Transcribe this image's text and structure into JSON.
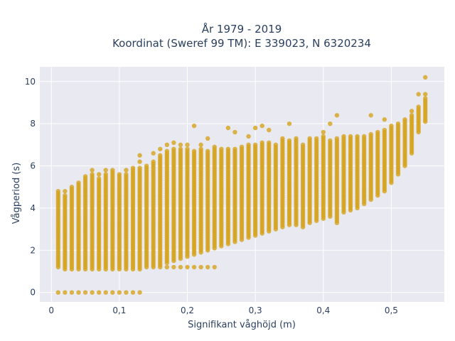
{
  "chart_data": {
    "type": "scatter",
    "title_line1": "År 1979 - 2019",
    "title_line2": "Koordinat (Sweref 99 TM): E 339023, N 6320234",
    "xlabel": "Signifikant våghöjd (m)",
    "ylabel": "Vågperiod (s)",
    "xlim": [
      -0.017,
      0.578
    ],
    "ylim": [
      -0.45,
      10.7
    ],
    "xticks": [
      0,
      0.1,
      0.2,
      0.3,
      0.4,
      0.5
    ],
    "xtick_labels": [
      "0",
      "0,1",
      "0,2",
      "0,3",
      "0,4",
      "0,5"
    ],
    "yticks": [
      0,
      2,
      4,
      6,
      8,
      10
    ],
    "ytick_labels": [
      "0",
      "2",
      "4",
      "6",
      "8",
      "10"
    ],
    "grid": true,
    "marker_color": "#d4a21c",
    "plot_bg": "#e9e9f1",
    "step": 0.01,
    "columns": [
      {
        "x": 0.01,
        "ymin": 1.2,
        "ymax": 4.7,
        "extra": [
          4.8
        ]
      },
      {
        "x": 0.02,
        "ymin": 1.1,
        "ymax": 4.6,
        "extra": [
          4.8
        ]
      },
      {
        "x": 0.03,
        "ymin": 1.1,
        "ymax": 5.0,
        "extra": []
      },
      {
        "x": 0.04,
        "ymin": 1.1,
        "ymax": 5.2,
        "extra": []
      },
      {
        "x": 0.05,
        "ymin": 1.1,
        "ymax": 5.4,
        "extra": [
          5.5
        ]
      },
      {
        "x": 0.06,
        "ymin": 1.1,
        "ymax": 5.6,
        "extra": [
          5.8
        ]
      },
      {
        "x": 0.07,
        "ymin": 1.1,
        "ymax": 5.4,
        "extra": [
          5.6
        ]
      },
      {
        "x": 0.08,
        "ymin": 1.1,
        "ymax": 5.6,
        "extra": [
          5.8
        ]
      },
      {
        "x": 0.09,
        "ymin": 1.1,
        "ymax": 5.8,
        "extra": []
      },
      {
        "x": 0.1,
        "ymin": 1.1,
        "ymax": 5.6,
        "extra": []
      },
      {
        "x": 0.11,
        "ymin": 1.1,
        "ymax": 5.6,
        "extra": [
          5.8
        ]
      },
      {
        "x": 0.12,
        "ymin": 1.1,
        "ymax": 5.8,
        "extra": [
          5.9
        ]
      },
      {
        "x": 0.13,
        "ymin": 1.1,
        "ymax": 5.9,
        "extra": [
          6.2,
          6.5
        ]
      },
      {
        "x": 0.14,
        "ymin": 1.3,
        "ymax": 6.0,
        "extra": []
      },
      {
        "x": 0.15,
        "ymin": 1.3,
        "ymax": 6.1,
        "extra": [
          6.2,
          6.6
        ]
      },
      {
        "x": 0.16,
        "ymin": 1.3,
        "ymax": 6.5,
        "extra": [
          6.8
        ]
      },
      {
        "x": 0.17,
        "ymin": 1.4,
        "ymax": 6.7,
        "extra": [
          7.0
        ]
      },
      {
        "x": 0.18,
        "ymin": 1.5,
        "ymax": 6.8,
        "extra": [
          7.1
        ]
      },
      {
        "x": 0.19,
        "ymin": 1.6,
        "ymax": 6.8,
        "extra": [
          7.0
        ]
      },
      {
        "x": 0.2,
        "ymin": 1.7,
        "ymax": 6.8,
        "extra": [
          7.0
        ]
      },
      {
        "x": 0.21,
        "ymin": 1.8,
        "ymax": 6.7,
        "extra": [
          7.9
        ]
      },
      {
        "x": 0.22,
        "ymin": 1.9,
        "ymax": 6.8,
        "extra": [
          7.0
        ]
      },
      {
        "x": 0.23,
        "ymin": 2.0,
        "ymax": 6.7,
        "extra": [
          7.3
        ]
      },
      {
        "x": 0.24,
        "ymin": 2.1,
        "ymax": 6.8,
        "extra": [
          6.9
        ]
      },
      {
        "x": 0.25,
        "ymin": 2.2,
        "ymax": 6.8,
        "extra": []
      },
      {
        "x": 0.26,
        "ymin": 2.3,
        "ymax": 6.8,
        "extra": [
          7.8
        ]
      },
      {
        "x": 0.27,
        "ymin": 2.4,
        "ymax": 6.8,
        "extra": [
          7.6
        ]
      },
      {
        "x": 0.28,
        "ymin": 2.5,
        "ymax": 6.9,
        "extra": []
      },
      {
        "x": 0.29,
        "ymin": 2.6,
        "ymax": 7.0,
        "extra": [
          7.4
        ]
      },
      {
        "x": 0.3,
        "ymin": 2.7,
        "ymax": 7.0,
        "extra": [
          7.8
        ]
      },
      {
        "x": 0.31,
        "ymin": 2.8,
        "ymax": 7.1,
        "extra": [
          7.9
        ]
      },
      {
        "x": 0.32,
        "ymin": 2.9,
        "ymax": 7.1,
        "extra": [
          7.7
        ]
      },
      {
        "x": 0.33,
        "ymin": 3.0,
        "ymax": 7.0,
        "extra": []
      },
      {
        "x": 0.34,
        "ymin": 3.1,
        "ymax": 7.2,
        "extra": [
          7.3
        ]
      },
      {
        "x": 0.35,
        "ymin": 3.2,
        "ymax": 7.2,
        "extra": [
          8.0
        ]
      },
      {
        "x": 0.36,
        "ymin": 3.2,
        "ymax": 7.3,
        "extra": []
      },
      {
        "x": 0.37,
        "ymin": 3.1,
        "ymax": 7.0,
        "extra": []
      },
      {
        "x": 0.38,
        "ymin": 3.3,
        "ymax": 7.2,
        "extra": [
          7.3
        ]
      },
      {
        "x": 0.39,
        "ymin": 3.4,
        "ymax": 7.3,
        "extra": []
      },
      {
        "x": 0.4,
        "ymin": 3.5,
        "ymax": 7.4,
        "extra": [
          7.6
        ]
      },
      {
        "x": 0.41,
        "ymin": 3.6,
        "ymax": 7.2,
        "extra": [
          8.0
        ]
      },
      {
        "x": 0.42,
        "ymin": 3.3,
        "ymax": 7.3,
        "extra": [
          8.4
        ]
      },
      {
        "x": 0.43,
        "ymin": 3.8,
        "ymax": 7.4,
        "extra": []
      },
      {
        "x": 0.44,
        "ymin": 3.9,
        "ymax": 7.4,
        "extra": []
      },
      {
        "x": 0.45,
        "ymin": 4.0,
        "ymax": 7.3,
        "extra": [
          7.4
        ]
      },
      {
        "x": 0.46,
        "ymin": 4.2,
        "ymax": 7.4,
        "extra": []
      },
      {
        "x": 0.47,
        "ymin": 4.4,
        "ymax": 7.5,
        "extra": [
          8.4
        ]
      },
      {
        "x": 0.48,
        "ymin": 4.6,
        "ymax": 7.6,
        "extra": []
      },
      {
        "x": 0.49,
        "ymin": 4.8,
        "ymax": 7.7,
        "extra": [
          8.2
        ]
      },
      {
        "x": 0.5,
        "ymin": 5.2,
        "ymax": 7.9,
        "extra": []
      },
      {
        "x": 0.51,
        "ymin": 5.6,
        "ymax": 8.0,
        "extra": []
      },
      {
        "x": 0.52,
        "ymin": 6.0,
        "ymax": 8.2,
        "extra": []
      },
      {
        "x": 0.53,
        "ymin": 6.6,
        "ymax": 8.4,
        "extra": [
          8.6
        ]
      },
      {
        "x": 0.54,
        "ymin": 7.6,
        "ymax": 8.8,
        "extra": [
          9.4
        ]
      },
      {
        "x": 0.55,
        "ymin": 8.1,
        "ymax": 9.2,
        "extra": [
          9.4,
          10.2
        ]
      }
    ],
    "zero_points": [
      0.01,
      0.02,
      0.03,
      0.04,
      0.05,
      0.06,
      0.07,
      0.08,
      0.09,
      0.1,
      0.11,
      0.12,
      0.13
    ],
    "low_band": {
      "y": 1.2,
      "xs": [
        0.14,
        0.15,
        0.16,
        0.17,
        0.18,
        0.19,
        0.2,
        0.21,
        0.22,
        0.23,
        0.24
      ]
    }
  }
}
